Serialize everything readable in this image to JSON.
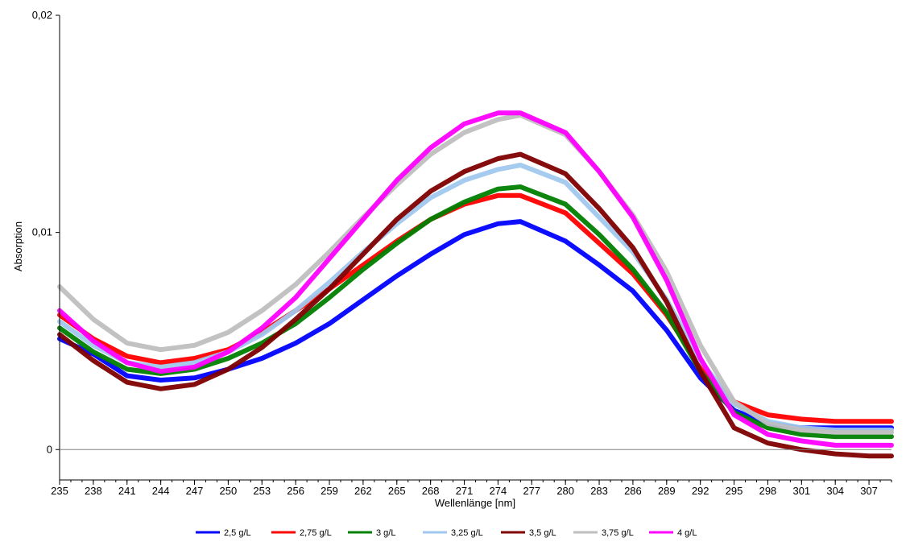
{
  "chart_data": {
    "type": "line",
    "title": "",
    "xlabel": "Wellenlänge [nm]",
    "ylabel": "Absorption",
    "xlim": [
      235,
      309
    ],
    "ylim": [
      -0.0014,
      0.02
    ],
    "x_ticks": [
      235,
      238,
      241,
      244,
      247,
      250,
      253,
      256,
      259,
      262,
      265,
      268,
      271,
      274,
      277,
      280,
      283,
      286,
      289,
      292,
      295,
      298,
      301,
      304,
      307
    ],
    "x_tick_labels": [
      "235",
      "238",
      "241",
      "244",
      "247",
      "250",
      "253",
      "256",
      "259",
      "262",
      "265",
      "268",
      "271",
      "274",
      "277",
      "280",
      "283",
      "286",
      "289",
      "292",
      "295",
      "298",
      "301",
      "304",
      "307"
    ],
    "y_ticks": [
      0,
      0.01,
      0.02
    ],
    "y_tick_labels": [
      "0",
      "0,01",
      "0,02"
    ],
    "grid": false,
    "legend_position": "bottom",
    "x": [
      235,
      238,
      241,
      244,
      247,
      250,
      253,
      256,
      259,
      262,
      265,
      268,
      271,
      274,
      276,
      280,
      283,
      286,
      289,
      292,
      295,
      298,
      301,
      304,
      307,
      309
    ],
    "series": [
      {
        "name": "2,5 g/L",
        "color": "#0000ff",
        "values": [
          0.0051,
          0.0044,
          0.0034,
          0.0032,
          0.0033,
          0.0037,
          0.0042,
          0.0049,
          0.0058,
          0.0069,
          0.008,
          0.009,
          0.0099,
          0.0104,
          0.0105,
          0.0096,
          0.0085,
          0.0073,
          0.0055,
          0.0033,
          0.0018,
          0.0012,
          0.001,
          0.001,
          0.001,
          0.001
        ]
      },
      {
        "name": "2,75 g/L",
        "color": "#ff0000",
        "values": [
          0.0062,
          0.0051,
          0.0043,
          0.004,
          0.0042,
          0.0046,
          0.0054,
          0.0064,
          0.0074,
          0.0085,
          0.0096,
          0.0106,
          0.0113,
          0.0117,
          0.0117,
          0.0109,
          0.0095,
          0.0081,
          0.0062,
          0.0038,
          0.0022,
          0.0016,
          0.0014,
          0.0013,
          0.0013,
          0.0013
        ]
      },
      {
        "name": "3 g/L",
        "color": "#008000",
        "values": [
          0.0056,
          0.0045,
          0.0037,
          0.0035,
          0.0037,
          0.0042,
          0.0049,
          0.0058,
          0.007,
          0.0083,
          0.0095,
          0.0106,
          0.0114,
          0.012,
          0.0121,
          0.0113,
          0.0099,
          0.0083,
          0.0063,
          0.0036,
          0.0017,
          0.001,
          0.0007,
          0.0006,
          0.0006,
          0.0006
        ]
      },
      {
        "name": "3,25 g/L",
        "color": "#a0c8ee",
        "values": [
          0.0059,
          0.0048,
          0.004,
          0.0038,
          0.004,
          0.0045,
          0.0053,
          0.0064,
          0.0077,
          0.0091,
          0.0104,
          0.0116,
          0.0124,
          0.0129,
          0.0131,
          0.0123,
          0.0107,
          0.0091,
          0.0069,
          0.0041,
          0.0021,
          0.0013,
          0.001,
          0.0009,
          0.0009,
          0.0009
        ]
      },
      {
        "name": "3,5 g/L",
        "color": "#800000",
        "values": [
          0.0053,
          0.0041,
          0.0031,
          0.0028,
          0.003,
          0.0037,
          0.0047,
          0.006,
          0.0074,
          0.009,
          0.0106,
          0.0119,
          0.0128,
          0.0134,
          0.0136,
          0.0127,
          0.0111,
          0.0093,
          0.0068,
          0.0036,
          0.001,
          0.0003,
          0.0,
          -0.0002,
          -0.0003,
          -0.0003
        ]
      },
      {
        "name": "3,75 g/L",
        "color": "#bfbfbf",
        "values": [
          0.0075,
          0.006,
          0.0049,
          0.0046,
          0.0048,
          0.0054,
          0.0064,
          0.0076,
          0.0091,
          0.0107,
          0.0122,
          0.0136,
          0.0146,
          0.0152,
          0.0154,
          0.0145,
          0.0128,
          0.0108,
          0.0082,
          0.0048,
          0.0022,
          0.0012,
          0.0009,
          0.0008,
          0.0008,
          0.0008
        ]
      },
      {
        "name": "4 g/L",
        "color": "#ff00ff",
        "values": [
          0.0064,
          0.005,
          0.004,
          0.0036,
          0.0038,
          0.0045,
          0.0056,
          0.007,
          0.0088,
          0.0106,
          0.0124,
          0.0139,
          0.015,
          0.0155,
          0.0155,
          0.0146,
          0.0128,
          0.0107,
          0.0078,
          0.0042,
          0.0016,
          0.0007,
          0.0004,
          0.0002,
          0.0002,
          0.0002
        ]
      }
    ]
  }
}
